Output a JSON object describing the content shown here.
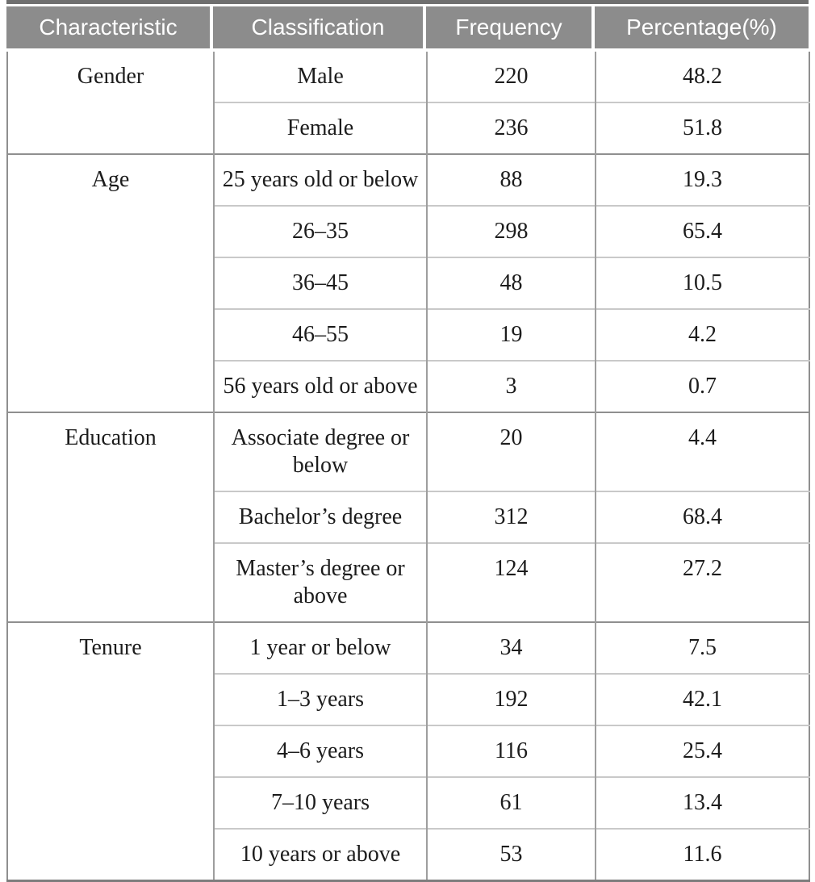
{
  "table": {
    "columns": {
      "characteristic": "Characteristic",
      "classification": "Classification",
      "frequency": "Frequency",
      "percentage": "Percentage(%)"
    },
    "colors": {
      "header_bg": "#8c8c8c",
      "header_text": "#ffffff",
      "top_rule": "#6f6f6f",
      "grid_major": "#8f8f8f",
      "grid_minor": "#c9c9c9"
    },
    "sections": [
      {
        "characteristic": "Gender",
        "rows": [
          {
            "classification": "Male",
            "frequency": "220",
            "percentage": "48.2"
          },
          {
            "classification": "Female",
            "frequency": "236",
            "percentage": "51.8"
          }
        ]
      },
      {
        "characteristic": "Age",
        "rows": [
          {
            "classification": "25 years old or below",
            "frequency": "88",
            "percentage": "19.3"
          },
          {
            "classification": "26–35",
            "frequency": "298",
            "percentage": "65.4"
          },
          {
            "classification": "36–45",
            "frequency": "48",
            "percentage": "10.5"
          },
          {
            "classification": "46–55",
            "frequency": "19",
            "percentage": "4.2"
          },
          {
            "classification": "56 years old or above",
            "frequency": "3",
            "percentage": "0.7"
          }
        ]
      },
      {
        "characteristic": "Education",
        "rows": [
          {
            "classification": "Associate degree or below",
            "frequency": "20",
            "percentage": "4.4"
          },
          {
            "classification": "Bachelor’s degree",
            "frequency": "312",
            "percentage": "68.4"
          },
          {
            "classification": "Master’s degree or above",
            "frequency": "124",
            "percentage": "27.2"
          }
        ]
      },
      {
        "characteristic": "Tenure",
        "rows": [
          {
            "classification": "1 year or below",
            "frequency": "34",
            "percentage": "7.5"
          },
          {
            "classification": "1–3 years",
            "frequency": "192",
            "percentage": "42.1"
          },
          {
            "classification": "4–6 years",
            "frequency": "116",
            "percentage": "25.4"
          },
          {
            "classification": "7–10 years",
            "frequency": "61",
            "percentage": "13.4"
          },
          {
            "classification": "10 years or above",
            "frequency": "53",
            "percentage": "11.6"
          }
        ]
      }
    ]
  }
}
